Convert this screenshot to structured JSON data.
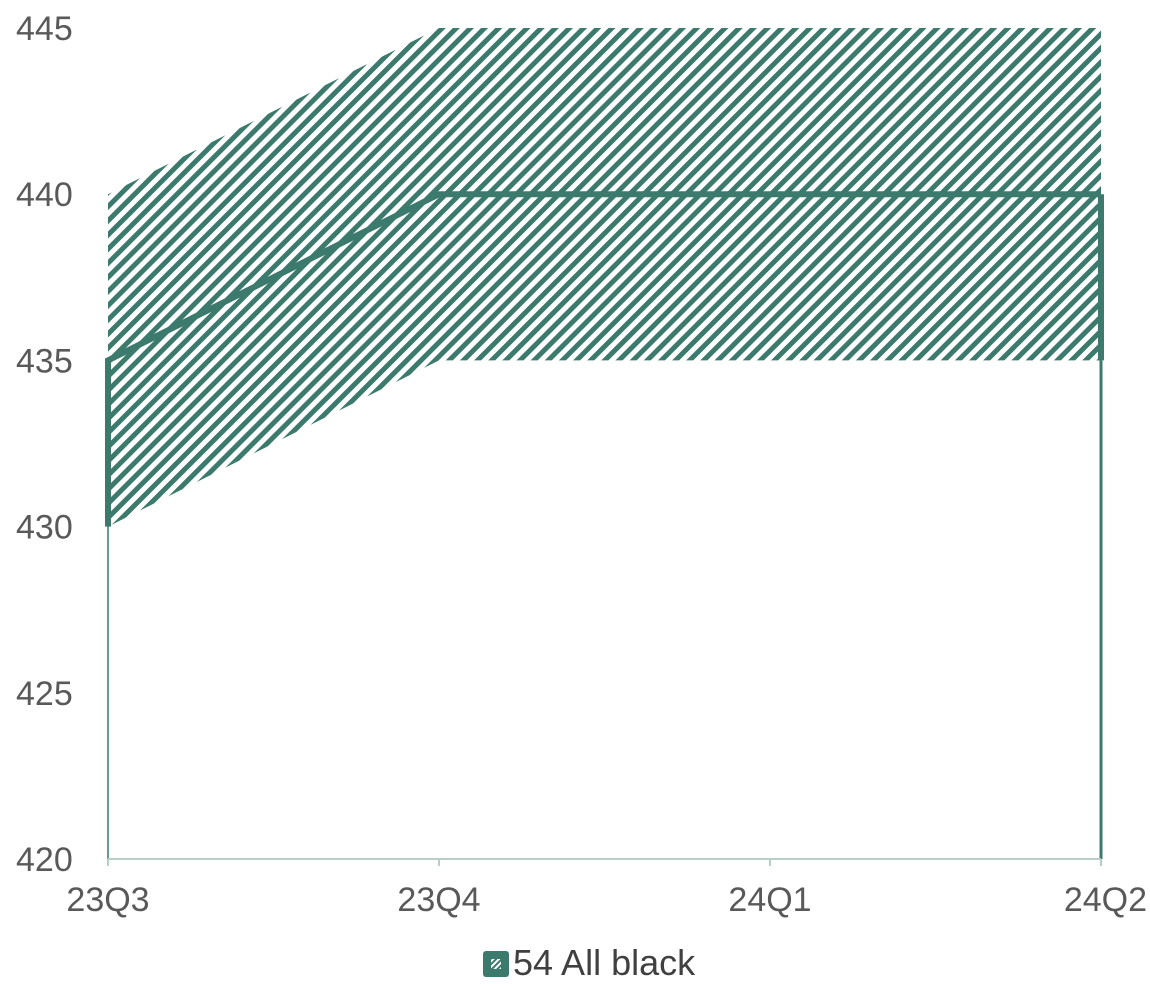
{
  "chart_data": {
    "type": "area",
    "categories": [
      "23Q3",
      "23Q4",
      "24Q1",
      "24Q2"
    ],
    "ylim": [
      420,
      445
    ],
    "yticks": [
      420,
      425,
      430,
      435,
      440,
      445
    ],
    "grid": false,
    "legend_position": "bottom",
    "series": [
      {
        "name": "54 All black",
        "values": [
          435,
          440,
          440,
          440
        ],
        "band_low": [
          430,
          435,
          435,
          435
        ],
        "band_high": [
          440,
          445,
          445,
          445
        ]
      }
    ],
    "colors": {
      "series": "#3b7a6c",
      "axis": "#b7cfc9",
      "tick_text": "#595959",
      "legend_text": "#404040"
    }
  }
}
